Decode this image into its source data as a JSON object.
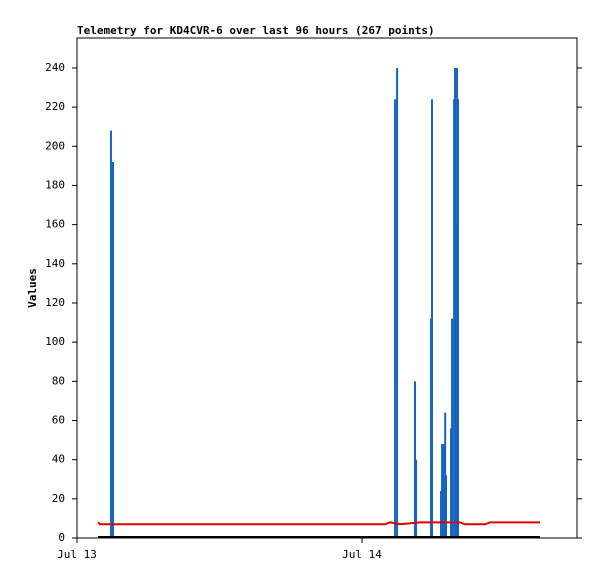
{
  "chart_data": {
    "type": "line",
    "title": "Telemetry for KD4CVR-6 over last 96 hours (267 points)",
    "y_label": "Values",
    "xlim": [
      0,
      42.1
    ],
    "xticks": [
      {
        "value": 0,
        "label": "Jul 13"
      },
      {
        "value": 24,
        "label": "Jul 14"
      }
    ],
    "ylim": [
      0,
      255.3
    ],
    "yticks": [
      0,
      20,
      40,
      60,
      80,
      100,
      120,
      140,
      160,
      180,
      200,
      220,
      240
    ],
    "grid": false,
    "series": [
      {
        "kind": "impulse",
        "color": "#1565c0",
        "x": [
          2.86,
          3.03,
          26.78,
          26.95,
          28.46,
          28.55,
          29.81,
          29.89,
          30.65,
          30.74,
          30.9,
          31.0,
          31.07,
          31.49,
          31.58,
          31.75,
          31.83,
          31.92,
          32.0,
          32.08
        ],
        "values": [
          208,
          192,
          224,
          240,
          80,
          40,
          112,
          224,
          24,
          48,
          48,
          64,
          32,
          56,
          112,
          224,
          240,
          160,
          240,
          224
        ]
      },
      {
        "kind": "line",
        "color": "#e00000",
        "x": [
          1.77,
          1.94,
          3.62,
          10.36,
          18.78,
          25.94,
          26.36,
          27.2,
          28.88,
          30.57,
          32.25,
          32.67,
          34.36,
          34.78,
          38.99
        ],
        "values": [
          8,
          7,
          7,
          7,
          7,
          7,
          8,
          7,
          8,
          8,
          8,
          7,
          7,
          8,
          8
        ]
      },
      {
        "kind": "line",
        "color": "#000000",
        "x": [
          1.77,
          38.99
        ],
        "values": [
          0.5,
          0.5
        ]
      }
    ]
  }
}
